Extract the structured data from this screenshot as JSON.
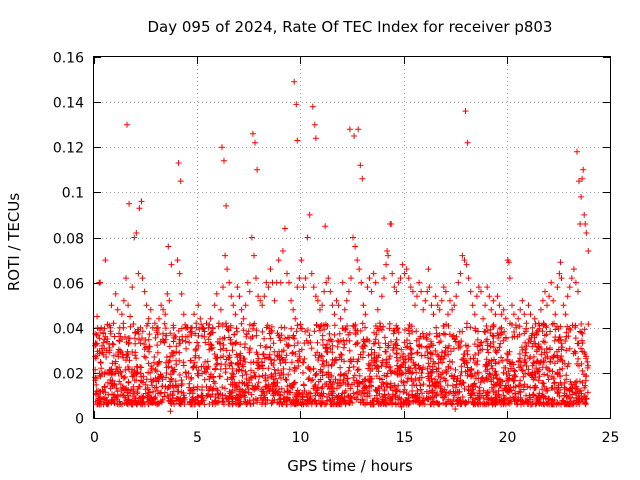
{
  "chart_data": {
    "type": "scatter",
    "title": "Day 095 of 2024, Rate Of TEC Index for receiver p803",
    "xlabel": "GPS time / hours",
    "ylabel": "ROTI / TECUs",
    "xlim": [
      0,
      25
    ],
    "ylim": [
      0,
      0.16
    ],
    "xticks": [
      0,
      5,
      10,
      15,
      20,
      25
    ],
    "xtick_labels": [
      "0",
      "5",
      "10",
      "15",
      "20",
      "25"
    ],
    "yticks": [
      0,
      0.02,
      0.04,
      0.06,
      0.08,
      0.1,
      0.12,
      0.14,
      0.16
    ],
    "ytick_labels": [
      "0",
      "0.02",
      "0.04",
      "0.06",
      "0.08",
      "0.1",
      "0.12",
      "0.14",
      "0.16"
    ],
    "grid": true,
    "marker": "+",
    "series": [
      {
        "name": "ROTI",
        "color": "#ff0000",
        "x": [
          0.05,
          0.15,
          0.25,
          0.35,
          0.45,
          0.55,
          0.65,
          0.75,
          0.85,
          0.95,
          1.05,
          1.15,
          1.25,
          1.35,
          1.45,
          1.55,
          1.65,
          1.75,
          1.85,
          1.95,
          2.05,
          2.15,
          2.25,
          2.35,
          2.45,
          2.55,
          2.65,
          2.75,
          2.85,
          2.95,
          3.05,
          3.15,
          3.25,
          3.35,
          3.45,
          3.55,
          3.65,
          3.75,
          3.85,
          3.95,
          4.05,
          4.15,
          4.25,
          4.35,
          4.45,
          4.55,
          4.65,
          4.75,
          4.85,
          4.95,
          5.05,
          5.15,
          5.25,
          5.35,
          5.45,
          5.55,
          5.65,
          5.75,
          5.85,
          5.95,
          6.05,
          6.15,
          6.25,
          6.35,
          6.45,
          6.55,
          6.65,
          6.75,
          6.85,
          6.95,
          7.05,
          7.15,
          7.25,
          7.35,
          7.45,
          7.55,
          7.65,
          7.75,
          7.85,
          7.95,
          8.05,
          8.15,
          8.25,
          8.35,
          8.45,
          8.55,
          8.65,
          8.75,
          8.85,
          8.95,
          9.05,
          9.15,
          9.25,
          9.35,
          9.45,
          9.55,
          9.65,
          9.75,
          9.85,
          9.95,
          10.05,
          10.15,
          10.25,
          10.35,
          10.45,
          10.55,
          10.65,
          10.75,
          10.85,
          10.95,
          11.05,
          11.15,
          11.25,
          11.35,
          11.45,
          11.55,
          11.65,
          11.75,
          11.85,
          11.95,
          12.05,
          12.15,
          12.25,
          12.35,
          12.45,
          12.55,
          12.65,
          12.75,
          12.85,
          12.95,
          13.05,
          13.15,
          13.25,
          13.35,
          13.45,
          13.55,
          13.65,
          13.75,
          13.85,
          13.95,
          14.05,
          14.15,
          14.25,
          14.35,
          14.45,
          14.55,
          14.65,
          14.75,
          14.85,
          14.95,
          15.05,
          15.15,
          15.25,
          15.35,
          15.45,
          15.55,
          15.65,
          15.75,
          15.85,
          15.95,
          16.05,
          16.15,
          16.25,
          16.35,
          16.45,
          16.55,
          16.65,
          16.75,
          16.85,
          16.95,
          17.05,
          17.15,
          17.25,
          17.35,
          17.45,
          17.55,
          17.65,
          17.75,
          17.85,
          17.95,
          18.05,
          18.15,
          18.25,
          18.35,
          18.45,
          18.55,
          18.65,
          18.75,
          18.85,
          18.95,
          19.05,
          19.15,
          19.25,
          19.35,
          19.45,
          19.55,
          19.65,
          19.75,
          19.85,
          19.95,
          20.05,
          20.15,
          20.25,
          20.35,
          20.45,
          20.55,
          20.65,
          20.75,
          20.85,
          20.95,
          21.05,
          21.15,
          21.25,
          21.35,
          21.45,
          21.55,
          21.65,
          21.75,
          21.85,
          21.95,
          22.05,
          22.15,
          22.25,
          22.35,
          22.45,
          22.55,
          22.65,
          22.75,
          22.85,
          22.95,
          23.05,
          23.15,
          23.25,
          23.35,
          23.45,
          23.55,
          23.65,
          23.75,
          23.85,
          23.95,
          0.3,
          0.8,
          1.6,
          1.7,
          2.2,
          2.3,
          3.6,
          3.7,
          4.1,
          4.2,
          6.2,
          6.3,
          6.4,
          7.7,
          7.8,
          7.9,
          9.7,
          9.8,
          9.85,
          10.6,
          10.7,
          10.75,
          11.2,
          12.4,
          12.6,
          12.8,
          12.9,
          13.0,
          14.2,
          14.4,
          15.1,
          16.2,
          17.5,
          18.0,
          18.1,
          19.3,
          20.1,
          22.6,
          23.4,
          23.5,
          23.6,
          23.7,
          23.8,
          0.2,
          0.6,
          1.0,
          1.4,
          1.9,
          2.6,
          3.1,
          3.3,
          3.8,
          4.4,
          4.7,
          5.2,
          5.6,
          6.0,
          6.7,
          7.2,
          8.1,
          8.4,
          8.8,
          9.1,
          9.4,
          10.2,
          10.9,
          11.5,
          11.9,
          12.2,
          13.4,
          13.7,
          14.0,
          14.6,
          14.9,
          15.4,
          15.8,
          16.4,
          16.9,
          17.2,
          17.7,
          18.4,
          18.8,
          19.1,
          19.6,
          19.9,
          20.4,
          20.8,
          21.1,
          21.6,
          21.9,
          22.3,
          22.8,
          23.1
        ],
        "y": [
          0.032,
          0.045,
          0.06,
          0.04,
          0.028,
          0.07,
          0.035,
          0.03,
          0.05,
          0.042,
          0.055,
          0.048,
          0.04,
          0.046,
          0.052,
          0.062,
          0.05,
          0.045,
          0.058,
          0.08,
          0.082,
          0.064,
          0.04,
          0.062,
          0.056,
          0.05,
          0.044,
          0.048,
          0.04,
          0.042,
          0.038,
          0.044,
          0.05,
          0.048,
          0.046,
          0.055,
          0.052,
          0.068,
          0.04,
          0.036,
          0.07,
          0.064,
          0.055,
          0.046,
          0.04,
          0.036,
          0.038,
          0.04,
          0.046,
          0.042,
          0.05,
          0.044,
          0.04,
          0.036,
          0.042,
          0.04,
          0.044,
          0.04,
          0.05,
          0.055,
          0.042,
          0.048,
          0.058,
          0.072,
          0.066,
          0.06,
          0.054,
          0.05,
          0.046,
          0.058,
          0.054,
          0.048,
          0.044,
          0.05,
          0.06,
          0.056,
          0.08,
          0.072,
          0.062,
          0.054,
          0.052,
          0.05,
          0.054,
          0.06,
          0.058,
          0.066,
          0.06,
          0.052,
          0.06,
          0.07,
          0.06,
          0.074,
          0.084,
          0.064,
          0.06,
          0.052,
          0.048,
          0.044,
          0.058,
          0.062,
          0.07,
          0.058,
          0.062,
          0.08,
          0.09,
          0.064,
          0.058,
          0.054,
          0.052,
          0.048,
          0.05,
          0.056,
          0.06,
          0.062,
          0.056,
          0.05,
          0.046,
          0.052,
          0.05,
          0.044,
          0.06,
          0.048,
          0.052,
          0.056,
          0.062,
          0.08,
          0.076,
          0.07,
          0.066,
          0.06,
          0.05,
          0.046,
          0.058,
          0.062,
          0.056,
          0.064,
          0.06,
          0.048,
          0.042,
          0.054,
          0.062,
          0.068,
          0.072,
          0.086,
          0.064,
          0.058,
          0.056,
          0.06,
          0.062,
          0.068,
          0.064,
          0.066,
          0.062,
          0.058,
          0.056,
          0.05,
          0.054,
          0.06,
          0.056,
          0.048,
          0.052,
          0.056,
          0.058,
          0.05,
          0.046,
          0.054,
          0.05,
          0.048,
          0.052,
          0.058,
          0.056,
          0.046,
          0.052,
          0.048,
          0.05,
          0.054,
          0.06,
          0.064,
          0.072,
          0.07,
          0.068,
          0.062,
          0.056,
          0.05,
          0.046,
          0.054,
          0.058,
          0.056,
          0.044,
          0.05,
          0.058,
          0.054,
          0.048,
          0.052,
          0.046,
          0.054,
          0.05,
          0.046,
          0.048,
          0.044,
          0.07,
          0.062,
          0.05,
          0.046,
          0.04,
          0.044,
          0.048,
          0.052,
          0.046,
          0.042,
          0.05,
          0.046,
          0.04,
          0.044,
          0.038,
          0.042,
          0.048,
          0.052,
          0.056,
          0.05,
          0.054,
          0.06,
          0.052,
          0.046,
          0.058,
          0.064,
          0.062,
          0.05,
          0.046,
          0.054,
          0.058,
          0.062,
          0.066,
          0.06,
          0.056,
          0.086,
          0.106,
          0.09,
          0.082,
          0.074,
          0.06,
          0.04,
          0.13,
          0.095,
          0.093,
          0.096,
          0.076,
          0.003,
          0.113,
          0.105,
          0.12,
          0.114,
          0.094,
          0.126,
          0.122,
          0.11,
          0.149,
          0.139,
          0.123,
          0.138,
          0.13,
          0.124,
          0.085,
          0.128,
          0.125,
          0.128,
          0.112,
          0.106,
          0.074,
          0.086,
          0.008,
          0.066,
          0.004,
          0.136,
          0.122,
          0.006,
          0.069,
          0.069,
          0.118,
          0.105,
          0.098,
          0.11,
          0.086,
          0.012,
          0.008,
          0.015,
          0.01,
          0.012,
          0.009,
          0.011,
          0.014,
          0.01,
          0.008,
          0.012,
          0.01,
          0.013,
          0.011,
          0.009,
          0.012,
          0.01,
          0.008,
          0.011,
          0.013,
          0.009,
          0.012,
          0.01,
          0.011,
          0.009,
          0.012,
          0.006,
          0.01,
          0.008,
          0.012,
          0.005,
          0.01,
          0.007,
          0.012,
          0.009,
          0.011,
          0.008,
          0.006,
          0.01,
          0.009,
          0.012,
          0.008,
          0.011,
          0.007,
          0.01,
          0.009,
          0.012,
          0.008,
          0.011,
          0.009
        ]
      }
    ]
  }
}
